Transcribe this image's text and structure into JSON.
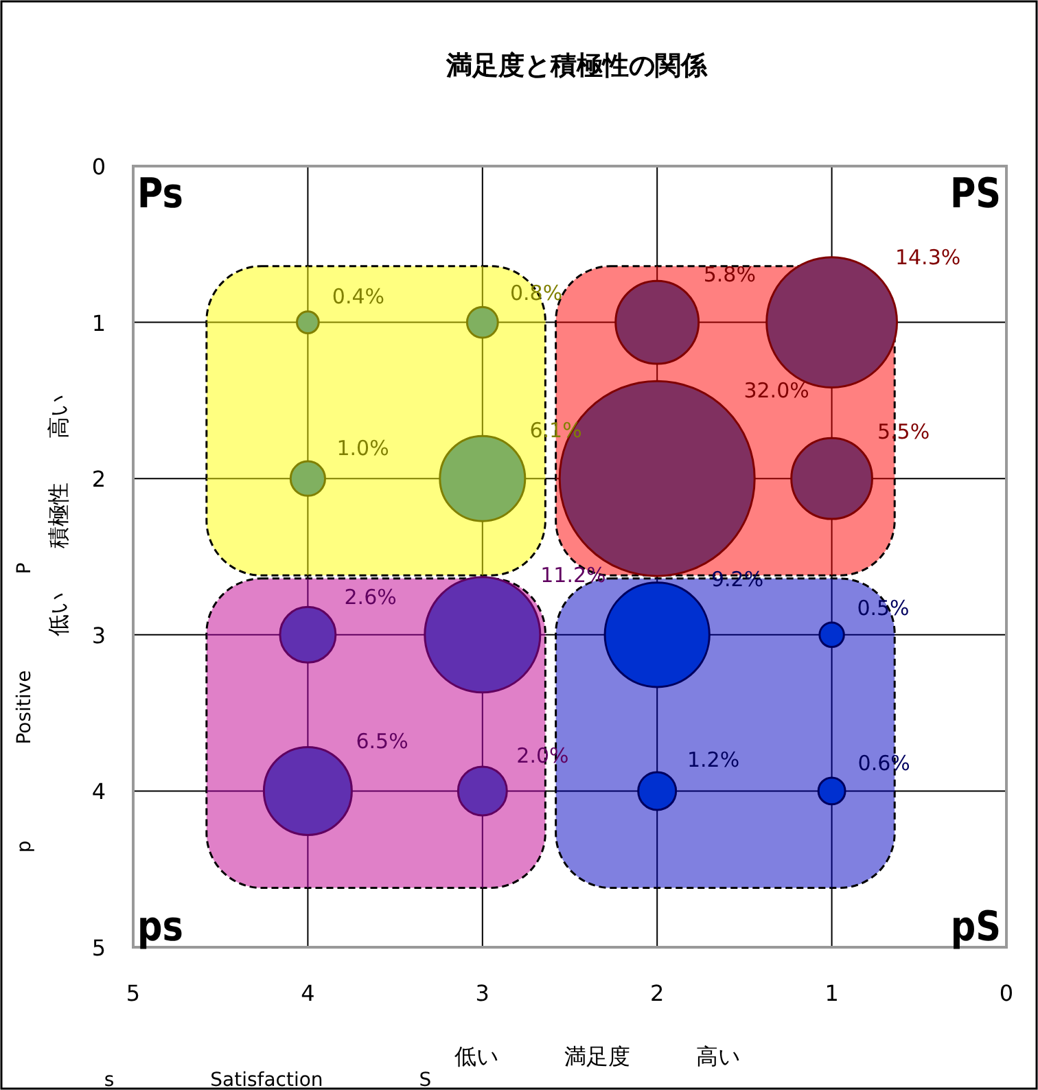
{
  "chart_data": {
    "type": "bubble",
    "title": "満足度と積極性の関係",
    "xlabel": "低い　　　満足度　　　高い",
    "ylabel": "低い　　積極性　　高い",
    "xlim": [
      5,
      0
    ],
    "ylim": [
      5,
      0
    ],
    "xticks": [
      5,
      4,
      3,
      2,
      1,
      0
    ],
    "yticks": [
      0,
      1,
      2,
      3,
      4,
      5
    ],
    "grid": true,
    "marker": "circle",
    "series": [
      {
        "color": "#80b060",
        "x": [
          4,
          3,
          4,
          3
        ],
        "values": [
          1,
          1,
          2,
          2
        ],
        "sizes": [
          0.4,
          0.8,
          1.0,
          6.1
        ],
        "value_labels": [
          "0.4%",
          "0.8%",
          "1.0%",
          "6.1%"
        ]
      },
      {
        "color": "#803060",
        "x": [
          2,
          1,
          2,
          1
        ],
        "values": [
          1,
          1,
          2,
          2
        ],
        "sizes": [
          5.8,
          14.3,
          32.0,
          5.5
        ],
        "value_labels": [
          "5.8%",
          "14.3%",
          "32.0%",
          "5.5%"
        ]
      },
      {
        "color": "#6030b0",
        "x": [
          4,
          3,
          4,
          3
        ],
        "values": [
          3,
          3,
          4,
          4
        ],
        "sizes": [
          2.6,
          11.2,
          6.5,
          2.0
        ],
        "value_labels": [
          "2.6%",
          "11.2%",
          "6.5%",
          "2.0%"
        ]
      },
      {
        "color": "#0030d0",
        "x": [
          2,
          1,
          2,
          1
        ],
        "values": [
          3,
          3,
          4,
          4
        ],
        "sizes": [
          9.2,
          0.5,
          1.2,
          0.6
        ],
        "value_labels": [
          "9.2%",
          "0.5%",
          "1.2%",
          "0.6%"
        ]
      }
    ],
    "annotations": [
      "Ps",
      "PS",
      "ps",
      "pS",
      "p　　　　　Positive　　　　　P",
      "s　　　　　Satisfaction　　　　　S"
    ]
  }
}
